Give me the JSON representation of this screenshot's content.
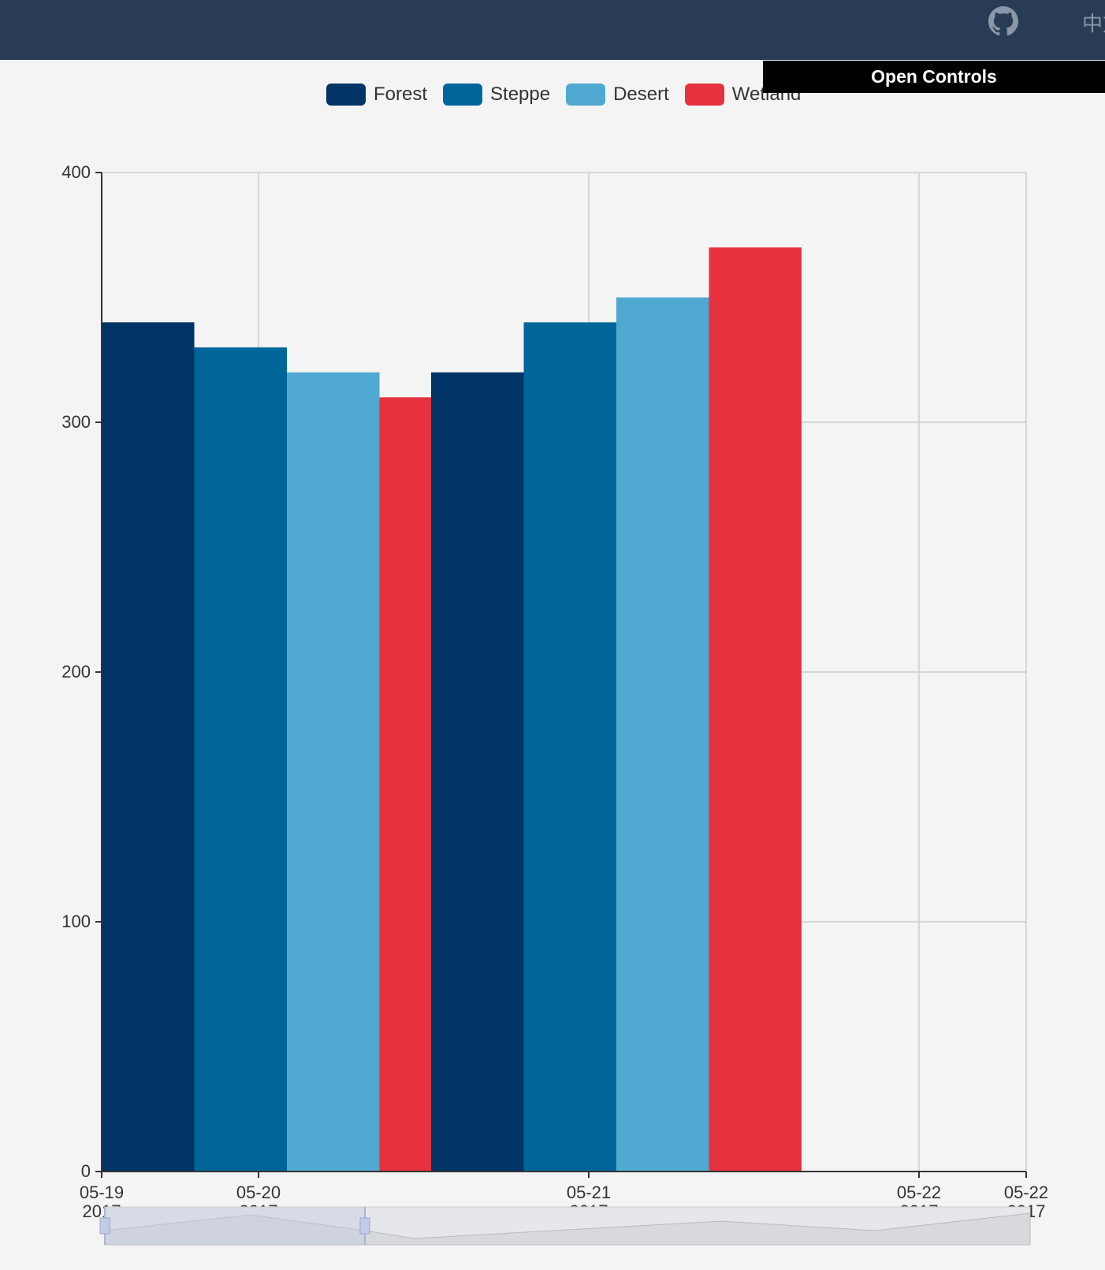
{
  "header": {
    "lang_label": "中文",
    "github_icon": "github-icon"
  },
  "controls": {
    "open_label": "Open Controls"
  },
  "chart_data": {
    "type": "bar",
    "categories": [
      "05-19",
      "05-21"
    ],
    "series": [
      {
        "name": "Forest",
        "color": "#003366",
        "values": [
          340,
          320
        ]
      },
      {
        "name": "Steppe",
        "color": "#006699",
        "values": [
          330,
          340
        ]
      },
      {
        "name": "Desert",
        "color": "#4fa9d0",
        "values": [
          320,
          350
        ]
      },
      {
        "name": "Wetland",
        "color": "#e5323e",
        "values": [
          310,
          370
        ]
      }
    ],
    "ylim": [
      0,
      400
    ],
    "yticks": [
      0,
      100,
      200,
      300,
      400
    ],
    "xticks": [
      {
        "label": "05-19",
        "sub": "2017"
      },
      {
        "label": "05-20",
        "sub": "2017"
      },
      {
        "label": "05-21",
        "sub": "2017"
      },
      {
        "label": "05-22",
        "sub": "2017"
      },
      {
        "label": "05-22",
        "sub": "2017"
      }
    ],
    "legend_position": "top-center",
    "grid": true
  }
}
